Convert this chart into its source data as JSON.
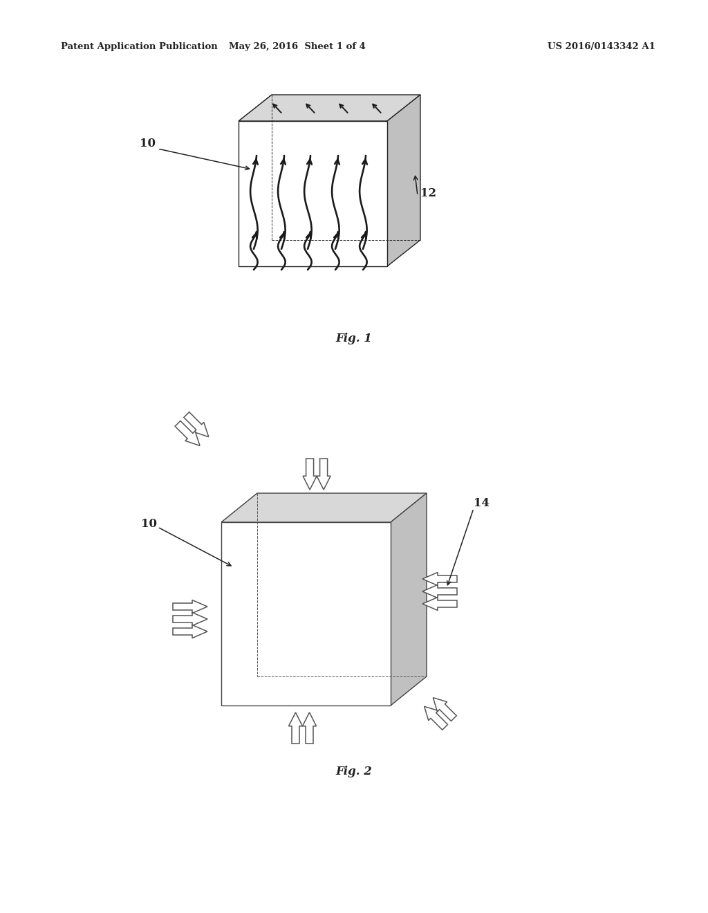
{
  "header_left": "Patent Application Publication",
  "header_center": "May 26, 2016  Sheet 1 of 4",
  "header_right": "US 2016/0143342 A1",
  "fig1_label": "Fig. 1",
  "fig2_label": "Fig. 2",
  "label_10_1": "10",
  "label_12": "12",
  "label_10_2": "10",
  "label_14": "14",
  "bg_color": "#ffffff",
  "line_color": "#222222",
  "gray_light": "#d8d8d8",
  "gray_mid": "#c0c0c0",
  "arrow_edge": "#555555"
}
